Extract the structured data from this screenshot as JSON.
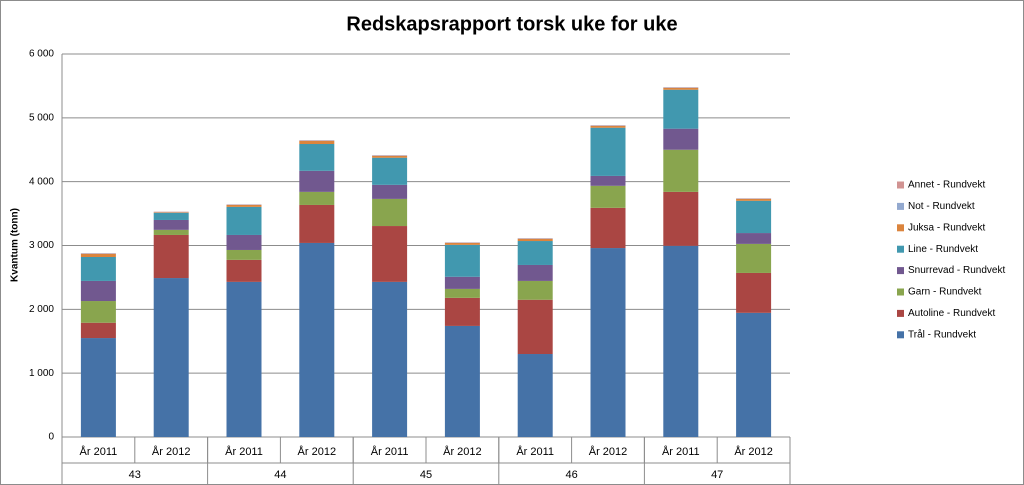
{
  "chart_data": {
    "type": "stacked_bar",
    "title": "Redskapsrapport torsk uke for uke",
    "y_label": "Kvantum (tonn)",
    "categories": [
      "År 2011",
      "År 2012",
      "År 2011",
      "År 2012",
      "År 2011",
      "År 2012",
      "År 2011",
      "År 2012",
      "År 2011",
      "År 2012"
    ],
    "groups": [
      "43",
      "44",
      "45",
      "46",
      "47"
    ],
    "ylim": [
      0,
      6000
    ],
    "yticks": [
      0,
      {
        "value": 1000,
        "label": "1 000"
      },
      {
        "value": 2000,
        "label": "2 000"
      },
      {
        "value": 3000,
        "label": "3 000"
      },
      {
        "value": 4000,
        "label": "4 000"
      },
      {
        "value": 5000,
        "label": "5 000"
      },
      {
        "value": 6000,
        "label": "6 000"
      }
    ],
    "grid": true,
    "legend": "right",
    "series": [
      {
        "name": "Trål - Rundvekt",
        "color": "#4572a7",
        "values": [
          1550,
          2490,
          2430,
          3040,
          2430,
          1740,
          1300,
          2960,
          2995,
          1945
        ]
      },
      {
        "name": "Autoline - Rundvekt",
        "color": "#aa4643",
        "values": [
          240,
          675,
          345,
          595,
          875,
          440,
          850,
          630,
          845,
          625
        ]
      },
      {
        "name": "Garn - Rundvekt",
        "color": "#89a54e",
        "values": [
          340,
          80,
          155,
          205,
          425,
          140,
          295,
          345,
          660,
          455
        ]
      },
      {
        "name": "Snurrevad - Rundvekt",
        "color": "#71588f",
        "values": [
          315,
          155,
          235,
          330,
          220,
          190,
          250,
          155,
          330,
          170
        ]
      },
      {
        "name": "Line - Rundvekt",
        "color": "#4198af",
        "values": [
          375,
          110,
          440,
          420,
          425,
          500,
          375,
          755,
          610,
          505
        ]
      },
      {
        "name": "Juksa - Rundvekt",
        "color": "#db843d",
        "values": [
          50,
          10,
          30,
          50,
          30,
          30,
          35,
          30,
          30,
          30
        ]
      },
      {
        "name": "Not - Rundvekt",
        "color": "#93a9cf",
        "values": [
          5,
          5,
          5,
          5,
          5,
          5,
          5,
          5,
          5,
          5
        ]
      },
      {
        "name": "Annet - Rundvekt",
        "color": "#d19392",
        "values": [
          5,
          5,
          5,
          5,
          5,
          5,
          5,
          5,
          5,
          5
        ]
      }
    ]
  }
}
